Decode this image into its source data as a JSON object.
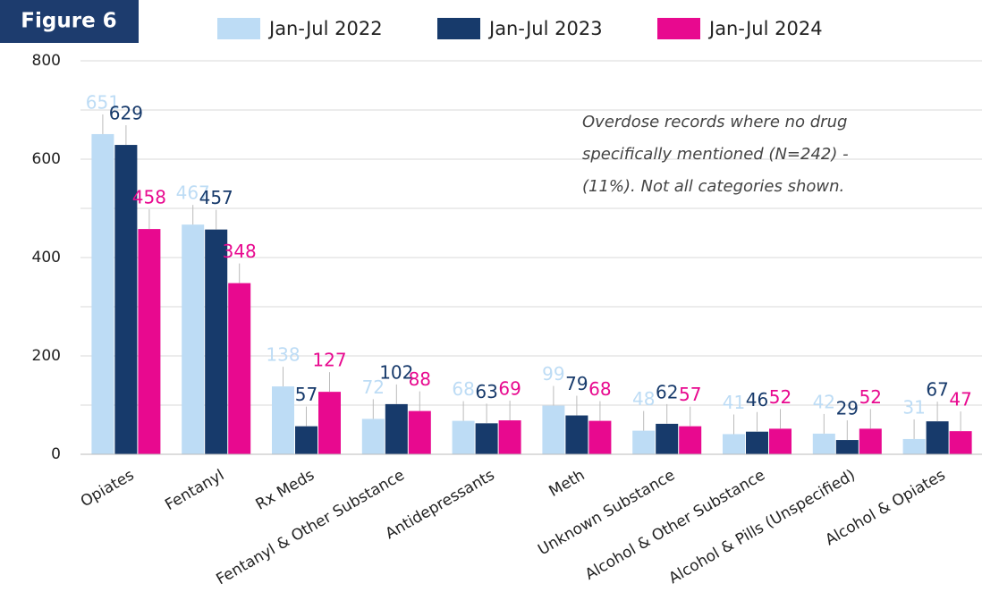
{
  "chart_data": {
    "type": "bar",
    "title": "Figure 6",
    "annotation": [
      "Overdose records where no drug",
      "specifically mentioned (N=242) -",
      "(11%). Not all categories shown."
    ],
    "categories": [
      "Opiates",
      "Fentanyl",
      "Rx Meds",
      "Fentanyl & Other Substance",
      "Antidepressants",
      "Meth",
      "Unknown Substance",
      "Alcohol & Other Substance",
      "Alcohol & Pills (Unspecified)",
      "Alcohol & Opiates"
    ],
    "series": [
      {
        "name": "Jan-Jul 2022",
        "color": "#bddcf5",
        "values": [
          651,
          467,
          138,
          72,
          68,
          99,
          48,
          41,
          42,
          31
        ]
      },
      {
        "name": "Jan-Jul 2023",
        "color": "#173a6b",
        "values": [
          629,
          457,
          57,
          102,
          63,
          79,
          62,
          46,
          29,
          67
        ]
      },
      {
        "name": "Jan-Jul 2024",
        "color": "#e8098f",
        "values": [
          458,
          348,
          127,
          88,
          69,
          68,
          57,
          52,
          52,
          47
        ]
      }
    ],
    "ylim": [
      0,
      800
    ],
    "yticks": [
      0,
      200,
      400,
      600,
      800
    ],
    "minor_grid_ticks": [
      100,
      300,
      500,
      700
    ],
    "grid": true,
    "legend": "top"
  }
}
